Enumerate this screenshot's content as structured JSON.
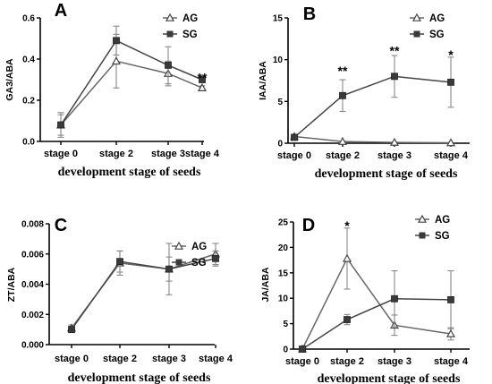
{
  "chart_data": [
    {
      "panel": "A",
      "type": "line",
      "ylabel": "GA3/ABA",
      "xlabel": "development stage of seeds",
      "categories": [
        "stage 0",
        "stage 2",
        "stage 3",
        "stage 4"
      ],
      "ylim": [
        0,
        0.6
      ],
      "yticks": [
        0,
        0.2,
        0.4,
        0.6
      ],
      "ytick_labels": [
        "0.0",
        "0.2",
        "0.4",
        "0.6"
      ],
      "legend_position": "top-right",
      "series": [
        {
          "name": "AG",
          "marker": "triangle",
          "values": [
            0.08,
            0.39,
            0.33,
            0.26
          ],
          "errors": [
            0.05,
            0.13,
            0.06,
            0.01
          ]
        },
        {
          "name": "SG",
          "marker": "square",
          "values": [
            0.08,
            0.49,
            0.37,
            0.3
          ],
          "errors": [
            0.06,
            0.07,
            0.09,
            0.01
          ]
        }
      ],
      "annotations": [
        {
          "category": "stage 4",
          "y": 0.31,
          "text": "**"
        }
      ]
    },
    {
      "panel": "B",
      "type": "line",
      "ylabel": "IAA/ABA",
      "xlabel": "development stage of seeds",
      "categories": [
        "stage 0",
        "stage 2",
        "stage 3",
        "stage 4"
      ],
      "ylim": [
        0,
        15
      ],
      "yticks": [
        0,
        5,
        10,
        15
      ],
      "ytick_labels": [
        "0",
        "5",
        "10",
        "15"
      ],
      "legend_position": "top-right",
      "series": [
        {
          "name": "AG",
          "marker": "triangle",
          "values": [
            0.8,
            0.2,
            0.1,
            0.05
          ],
          "errors": [
            0.15,
            0.05,
            0.05,
            0.03
          ]
        },
        {
          "name": "SG",
          "marker": "square",
          "values": [
            0.7,
            5.7,
            8.0,
            7.3
          ],
          "errors": [
            0.2,
            1.9,
            2.5,
            3.0
          ]
        }
      ],
      "annotations": [
        {
          "category": "stage 2",
          "y": 8.7,
          "text": "**"
        },
        {
          "category": "stage 3",
          "y": 11.1,
          "text": "**"
        },
        {
          "category": "stage 4",
          "y": 10.6,
          "text": "*"
        }
      ]
    },
    {
      "panel": "C",
      "type": "line",
      "ylabel": "ZT/ABA",
      "xlabel": "development stage of seeds",
      "categories": [
        "stage 0",
        "stage 2",
        "stage 3",
        "stage 4"
      ],
      "ylim": [
        0,
        0.008
      ],
      "yticks": [
        0,
        0.002,
        0.004,
        0.006,
        0.008
      ],
      "ytick_labels": [
        "0.000",
        "0.002",
        "0.004",
        "0.006",
        "0.008"
      ],
      "legend_position": "top-right",
      "series": [
        {
          "name": "AG",
          "marker": "triangle",
          "values": [
            0.0011,
            0.0054,
            0.005,
            0.006
          ],
          "errors": [
            0.0002,
            0.0008,
            0.0017,
            0.0007
          ]
        },
        {
          "name": "SG",
          "marker": "square",
          "values": [
            0.001,
            0.0055,
            0.005,
            0.0057
          ],
          "errors": [
            0.0002,
            0.0007,
            0.0008,
            0.0005
          ]
        }
      ],
      "annotations": []
    },
    {
      "panel": "D",
      "type": "line",
      "ylabel": "JA/ABA",
      "xlabel": "development stage of seeds",
      "categories": [
        "stage 0",
        "stage 2",
        "stage 3",
        "stage 4"
      ],
      "ylim": [
        0,
        25
      ],
      "yticks": [
        0,
        5,
        10,
        15,
        20,
        25
      ],
      "ytick_labels": [
        "0",
        "5",
        "10",
        "15",
        "20",
        "25"
      ],
      "legend_position": "top-right",
      "series": [
        {
          "name": "AG",
          "marker": "triangle",
          "values": [
            0,
            17.8,
            4.7,
            3.0
          ],
          "errors": [
            0.3,
            6.0,
            2.0,
            1.2
          ]
        },
        {
          "name": "SG",
          "marker": "square",
          "values": [
            0,
            5.8,
            9.9,
            9.7
          ],
          "errors": [
            0.3,
            1.0,
            5.5,
            5.7
          ]
        }
      ],
      "annotations": [
        {
          "category": "stage 2",
          "y": 24.3,
          "text": "*"
        }
      ]
    }
  ]
}
